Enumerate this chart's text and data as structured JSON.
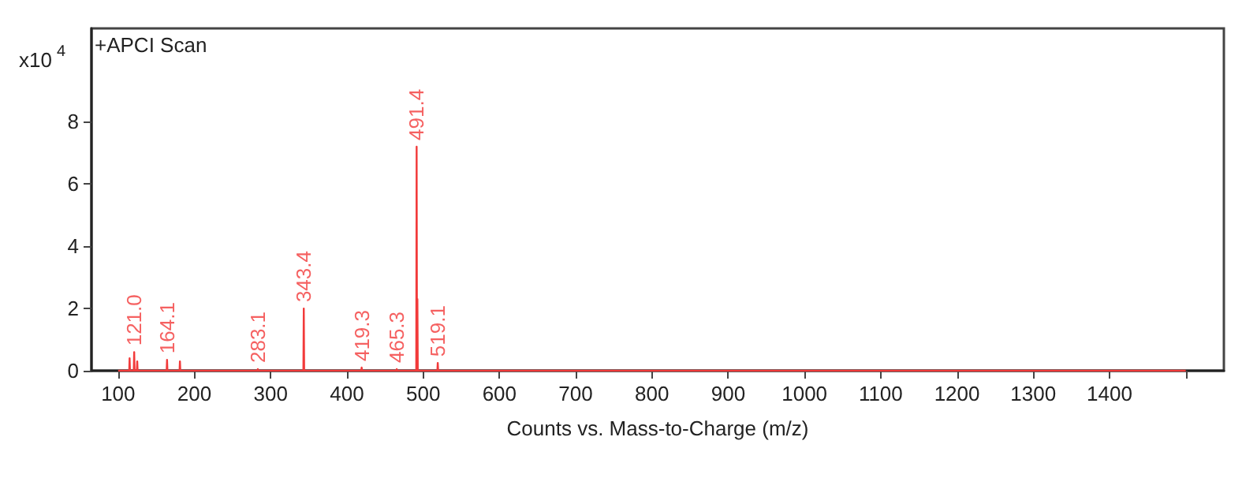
{
  "chart_data": {
    "type": "line",
    "xlabel": "Counts vs. Mass-to-Charge (m/z)",
    "ylabel": "x10$^{4}$",
    "annotations": [
      "+APCI Scan",
      {
        "text": "121.0",
        "x": 121.0,
        "y": 0.6
      },
      {
        "text": "164.1",
        "x": 164.1,
        "y": 0.35
      },
      {
        "text": "283.1",
        "x": 283.1,
        "y": 0.05
      },
      {
        "text": "343.4",
        "x": 343.4,
        "y": 2.0
      },
      {
        "text": "419.3",
        "x": 419.3,
        "y": 0.1
      },
      {
        "text": "465.3",
        "x": 465.3,
        "y": 0.05
      },
      {
        "text": "491.4",
        "x": 491.4,
        "y": 7.2
      },
      {
        "text": "519.1",
        "x": 519.1,
        "y": 0.25
      }
    ],
    "xlim": [
      65,
      1550
    ],
    "xticks": [
      100,
      200,
      300,
      400,
      500,
      600,
      700,
      800,
      900,
      1000,
      1100,
      1200,
      1300,
      1400,
      {
        "value": 1500,
        "label": null
      }
    ],
    "ylim": [
      0,
      11
    ],
    "yticks": [
      0,
      2,
      4,
      6,
      8
    ],
    "grid": false,
    "marker": "none",
    "line_style": "solid",
    "series": [
      {
        "color": "#f23a3a",
        "x": [
          100,
          114.5,
          115,
          115.5,
          120.5,
          121,
          121.5,
          124.5,
          125,
          125.5,
          163.6,
          164.1,
          164.6,
          180.5,
          181,
          181.5,
          282.6,
          283.1,
          283.6,
          342.9,
          343.4,
          343.9,
          418.8,
          419.3,
          419.8,
          464.8,
          465.3,
          465.8,
          490.9,
          491.4,
          491.9,
          492.4,
          492.9,
          518.6,
          519.1,
          519.6,
          1500
        ],
        "values": [
          0,
          0,
          0.4,
          0,
          0,
          0.6,
          0,
          0,
          0.3,
          0,
          0,
          0.35,
          0,
          0,
          0.3,
          0,
          0,
          0.05,
          0,
          0,
          2.0,
          0,
          0,
          0.1,
          0,
          0,
          0.05,
          0,
          0,
          7.2,
          0,
          2.3,
          0,
          0,
          0.25,
          0,
          0
        ]
      }
    ]
  }
}
